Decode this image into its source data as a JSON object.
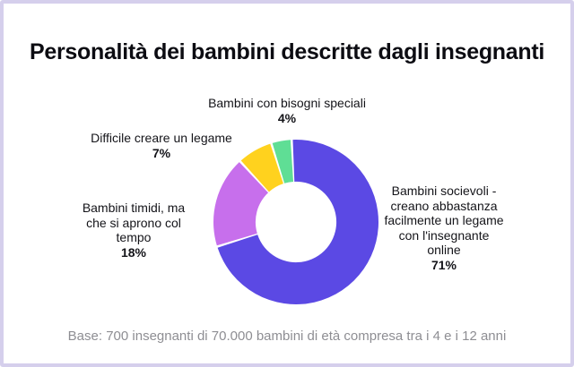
{
  "page": {
    "title": "Personalità dei bambini descritte dagli insegnanti",
    "footnote": "Base: 700 insegnanti di 70.000 bambini di età compresa tra i 4 e i 12 anni"
  },
  "theme": {
    "frame_border_color": "#d5cfec",
    "background": "#ffffff",
    "title_color": "#0c0c12",
    "label_color": "#141419",
    "footnote_color": "#8e8e93",
    "slice_gap_color": "#ffffff"
  },
  "chart_data": {
    "type": "pie",
    "variant": "donut",
    "title": "Personalità dei bambini descritte dagli insegnanti",
    "direction": "clockwise",
    "start_angle_deg": -3,
    "inner_radius_ratio": 0.49,
    "slice_gap_deg": 1.6,
    "legend_position": "callouts-around-donut",
    "slices": [
      {
        "id": "sociable",
        "label": "Bambini socievoli - creano abbastanza facilmente un legame con l'insegnante online",
        "value": 71,
        "color": "#5b49e4"
      },
      {
        "id": "shy",
        "label": "Bambini timidi, ma che si aprono col tempo",
        "value": 18,
        "color": "#c76fec"
      },
      {
        "id": "difficult",
        "label": "Difficile creare un legame",
        "value": 7,
        "color": "#ffd21e"
      },
      {
        "id": "special_needs",
        "label": "Bambini con bisogni speciali",
        "value": 4,
        "color": "#5fde95"
      }
    ],
    "callouts": {
      "special_needs": {
        "lines": [
          "Bambini con bisogni speciali"
        ],
        "pct": "4%"
      },
      "difficult": {
        "lines": [
          "Difficile creare un legame"
        ],
        "pct": "7%"
      },
      "shy": {
        "lines": [
          "Bambini timidi, ma",
          "che si aprono col",
          "tempo"
        ],
        "pct": "18%"
      },
      "sociable": {
        "lines": [
          "Bambini socievoli -",
          "creano abbastanza",
          "facilmente un legame",
          "con l'insegnante",
          "online"
        ],
        "pct": "71%"
      }
    },
    "footnote": "Base: 700 insegnanti di 70.000 bambini di età compresa tra i 4 e i 12 anni"
  }
}
